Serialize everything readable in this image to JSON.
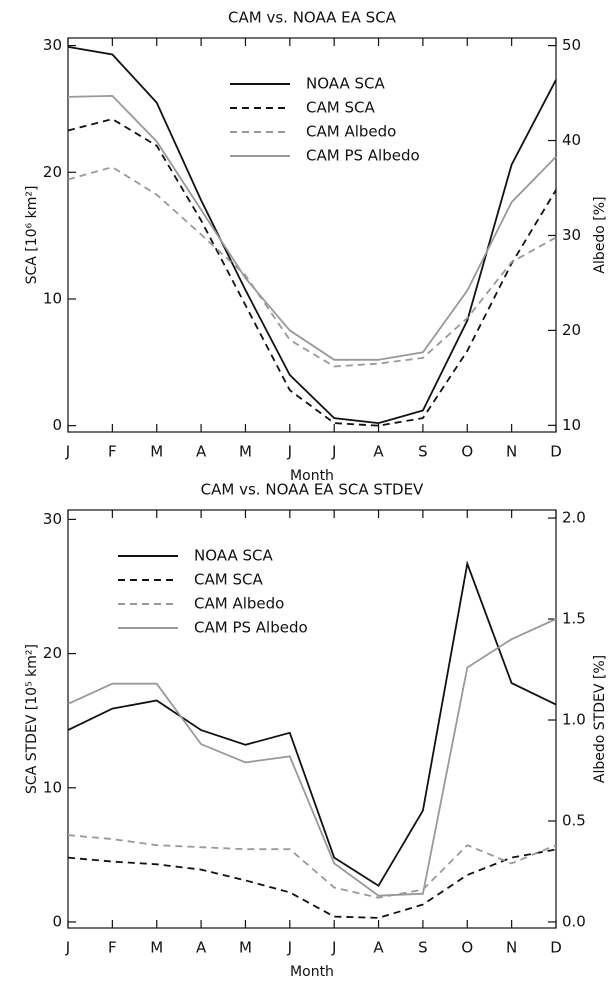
{
  "chart_data": [
    {
      "type": "line",
      "title": "CAM vs. NOAA EA SCA",
      "x_label": "Month",
      "y_label": "SCA [10⁶ km²]",
      "y2_label": "Albedo [%]",
      "categories": [
        "J",
        "F",
        "M",
        "A",
        "M",
        "J",
        "J",
        "A",
        "S",
        "O",
        "N",
        "D"
      ],
      "ylim": [
        -0.5,
        30.6
      ],
      "yticks": [
        0,
        10,
        20,
        30
      ],
      "y2lim": [
        9.3,
        50.8
      ],
      "y2ticks": [
        10,
        20,
        30,
        40,
        50
      ],
      "legend": "top-center",
      "series": [
        {
          "name": "NOAA SCA",
          "color": "#111111",
          "style": "solid",
          "values": [
            29.9,
            29.3,
            25.5,
            17.8,
            10.7,
            4.0,
            0.6,
            0.2,
            1.2,
            8.3,
            20.6,
            27.3
          ]
        },
        {
          "name": "CAM SCA",
          "color": "#111111",
          "style": "dashed",
          "values": [
            23.3,
            24.2,
            22.1,
            16.2,
            9.5,
            2.8,
            0.2,
            0.0,
            0.6,
            5.9,
            12.8,
            18.6
          ]
        },
        {
          "name": "CAM Albedo",
          "color": "#999999",
          "style": "dashed",
          "axis": "y2",
          "values": [
            35.9,
            37.2,
            34.3,
            30.1,
            25.8,
            19.0,
            16.2,
            16.5,
            17.1,
            21.3,
            27.2,
            29.8
          ]
        },
        {
          "name": "CAM PS Albedo",
          "color": "#999999",
          "style": "solid",
          "axis": "y2",
          "values": [
            44.6,
            44.7,
            39.9,
            32.7,
            25.5,
            20.0,
            16.9,
            16.9,
            17.7,
            24.2,
            33.5,
            38.3
          ]
        }
      ]
    },
    {
      "type": "line",
      "title": "CAM vs. NOAA EA SCA STDEV",
      "x_label": "Month",
      "y_label": "SCA STDEV [10⁵ km²]",
      "y2_label": "Albedo STDEV [%]",
      "categories": [
        "J",
        "F",
        "M",
        "A",
        "M",
        "J",
        "J",
        "A",
        "S",
        "O",
        "N",
        "D"
      ],
      "ylim": [
        -0.45,
        30.7
      ],
      "yticks": [
        0,
        10,
        20,
        30
      ],
      "y2lim": [
        -0.03,
        2.04
      ],
      "y2ticks": [
        {
          "value": 0,
          "label": "0.0"
        },
        0.5,
        {
          "value": 1,
          "label": "1.0"
        },
        1.5,
        {
          "value": 2,
          "label": "2.0"
        }
      ],
      "legend": "top-left",
      "series": [
        {
          "name": "NOAA SCA",
          "color": "#111111",
          "style": "solid",
          "values": [
            14.3,
            15.9,
            16.5,
            14.3,
            13.2,
            14.1,
            4.8,
            2.7,
            8.3,
            26.7,
            17.8,
            16.2
          ]
        },
        {
          "name": "CAM SCA",
          "color": "#111111",
          "style": "dashed",
          "values": [
            4.8,
            4.5,
            4.3,
            3.9,
            3.1,
            2.2,
            0.4,
            0.3,
            1.3,
            3.5,
            4.8,
            5.4
          ]
        },
        {
          "name": "CAM Albedo",
          "color": "#999999",
          "style": "dashed",
          "axis": "y2",
          "values": [
            0.43,
            0.41,
            0.38,
            0.37,
            0.36,
            0.36,
            0.17,
            0.12,
            0.16,
            0.38,
            0.29,
            0.38
          ]
        },
        {
          "name": "CAM PS Albedo",
          "color": "#999999",
          "style": "solid",
          "axis": "y2",
          "values": [
            1.08,
            1.18,
            1.18,
            0.88,
            0.79,
            0.82,
            0.29,
            0.13,
            0.14,
            1.26,
            1.4,
            1.5
          ]
        }
      ]
    }
  ]
}
